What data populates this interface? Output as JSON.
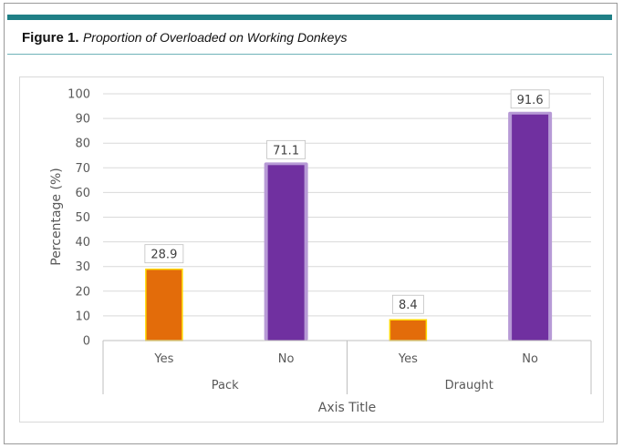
{
  "figure": {
    "label": "Figure 1.",
    "caption": "Proportion of Overloaded on Working Donkeys"
  },
  "colors": {
    "teal": "#1f7f86",
    "yes_bar": "#e36c0a",
    "yes_outline": "#ffd700",
    "no_bar": "#7030a0",
    "no_outline": "#b79ad6"
  },
  "chart_data": {
    "type": "bar",
    "title": "",
    "xlabel": "Axis Title",
    "ylabel": "Percentage (%)",
    "ylim": [
      0,
      100
    ],
    "yticks": [
      0,
      10,
      20,
      30,
      40,
      50,
      60,
      70,
      80,
      90,
      100
    ],
    "groups": [
      {
        "name": "Pack",
        "categories": [
          "Yes",
          "No"
        ],
        "values": [
          28.9,
          71.1
        ],
        "labels": [
          "28.9",
          "71.1"
        ]
      },
      {
        "name": "Draught",
        "categories": [
          "Yes",
          "No"
        ],
        "values": [
          8.4,
          91.6
        ],
        "labels": [
          "8.4",
          "91.6"
        ]
      }
    ],
    "grid": true,
    "legend": "none"
  }
}
